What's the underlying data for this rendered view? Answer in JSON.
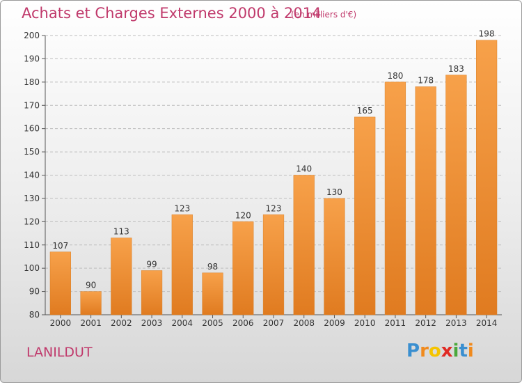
{
  "header": {
    "title": "Achats et Charges Externes 2000 à 2014",
    "subtitle": "(en milliers d'€)"
  },
  "footer": {
    "commune": "LANILDUT",
    "logo_letters": [
      "P",
      "r",
      "o",
      "x",
      "i",
      "t",
      "i"
    ],
    "logo_colors": [
      "#3a8fd0",
      "#f08a1d",
      "#f5c400",
      "#e02a24",
      "#4aa83c",
      "#3a8fd0",
      "#f08a1d"
    ]
  },
  "colors": {
    "accent": "#c0396b",
    "bar_top": "#f7a14a",
    "bar_bottom": "#e07b20",
    "grid": "#bdbdbd"
  },
  "chart_data": {
    "type": "bar",
    "title": "Achats et Charges Externes 2000 à 2014",
    "subtitle": "(en milliers d'€)",
    "categories": [
      "2000",
      "2001",
      "2002",
      "2003",
      "2004",
      "2005",
      "2006",
      "2007",
      "2008",
      "2009",
      "2010",
      "2011",
      "2012",
      "2013",
      "2014"
    ],
    "values": [
      107,
      90,
      113,
      99,
      123,
      98,
      120,
      123,
      140,
      130,
      165,
      180,
      178,
      183,
      198
    ],
    "ylim": [
      80,
      200
    ],
    "yticks": [
      80,
      90,
      100,
      110,
      120,
      130,
      140,
      150,
      160,
      170,
      180,
      190,
      200
    ],
    "grid": true,
    "data_labels": true,
    "xlabel": "",
    "ylabel": ""
  }
}
